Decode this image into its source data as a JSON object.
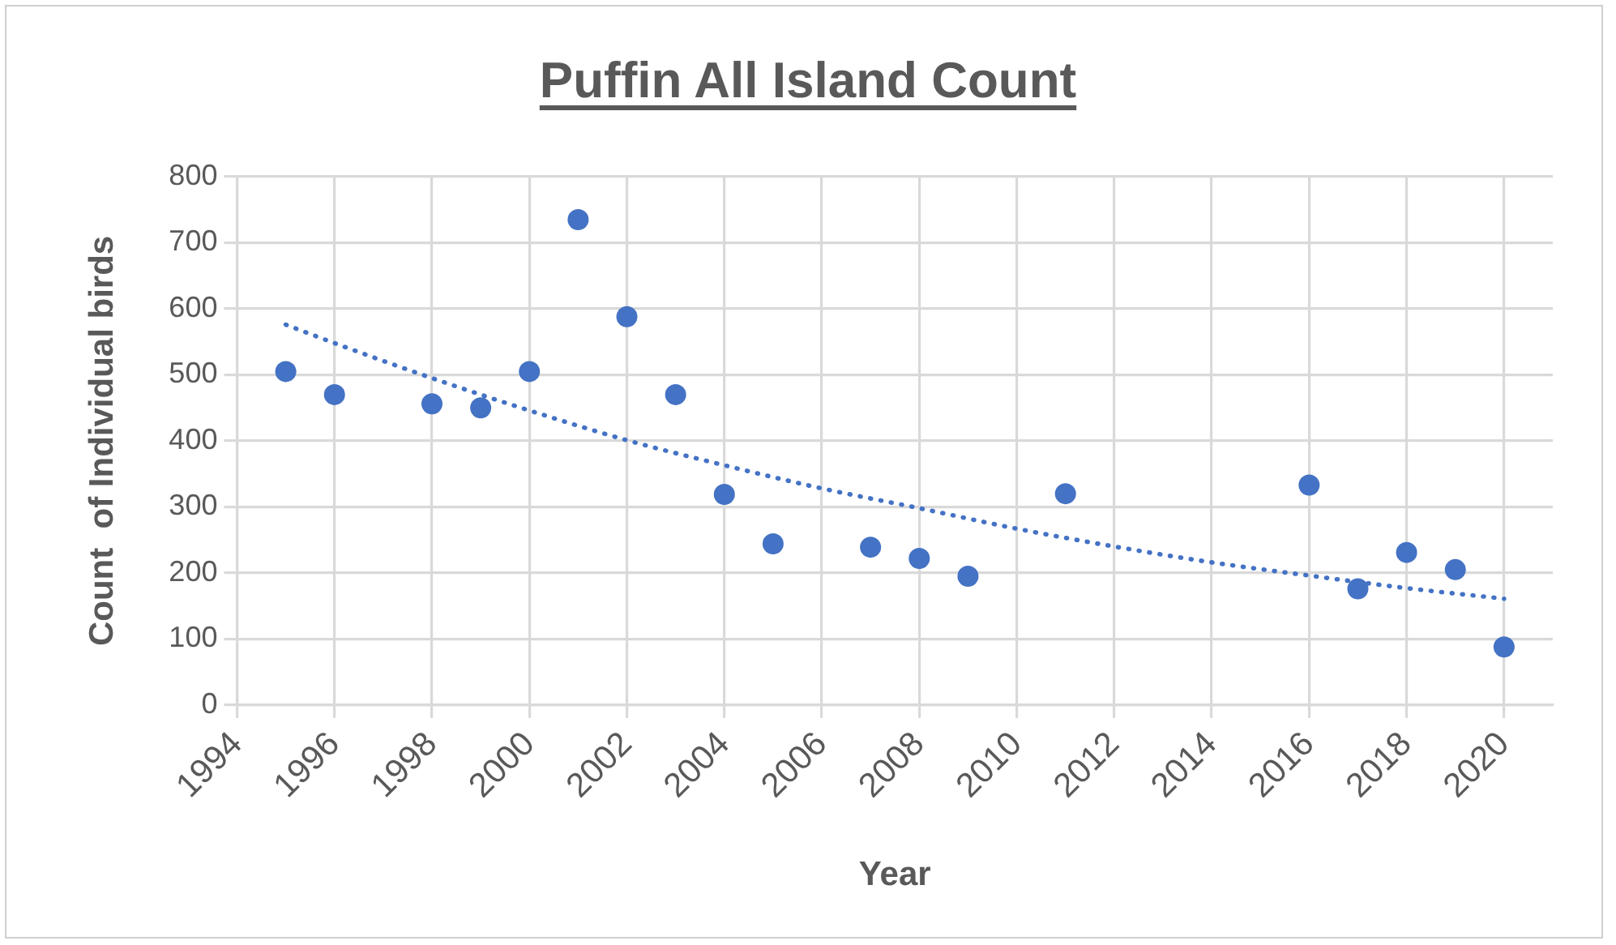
{
  "chart_data": {
    "type": "scatter",
    "title": "Puffin All Island Count",
    "xlabel": "Year",
    "ylabel": "Count  of Individual birds",
    "series": [
      {
        "type": "scatter",
        "color": "#4472c4",
        "marker": "circle",
        "x": [
          1995,
          1996,
          1998,
          1999,
          2000,
          2001,
          2002,
          2003,
          2004,
          2005,
          2007,
          2008,
          2009,
          2011,
          2016,
          2017,
          2018,
          2019,
          2020
        ],
        "values": [
          505,
          470,
          456,
          450,
          505,
          735,
          588,
          470,
          319,
          244,
          239,
          222,
          195,
          320,
          333,
          176,
          231,
          205,
          88
        ]
      },
      {
        "type": "line",
        "color": "#4472c4",
        "marker": "none",
        "line_style": "dotted",
        "x": [
          1995,
          1996,
          1998,
          2000,
          2002,
          2004,
          2006,
          2008,
          2010,
          2012,
          2014,
          2016,
          2018,
          2020
        ],
        "values": [
          576,
          548,
          495,
          446,
          401,
          363,
          328,
          298,
          267,
          240,
          216,
          196,
          177,
          161
        ]
      }
    ],
    "xlim": [
      1994,
      2021
    ],
    "xticks": [
      1994,
      1996,
      1998,
      2000,
      2002,
      2004,
      2006,
      2008,
      2010,
      2012,
      2014,
      2016,
      2018,
      2020
    ],
    "ylim": [
      0,
      800
    ],
    "yticks": [
      0,
      100,
      200,
      300,
      400,
      500,
      600,
      700,
      800
    ],
    "grid": true
  }
}
